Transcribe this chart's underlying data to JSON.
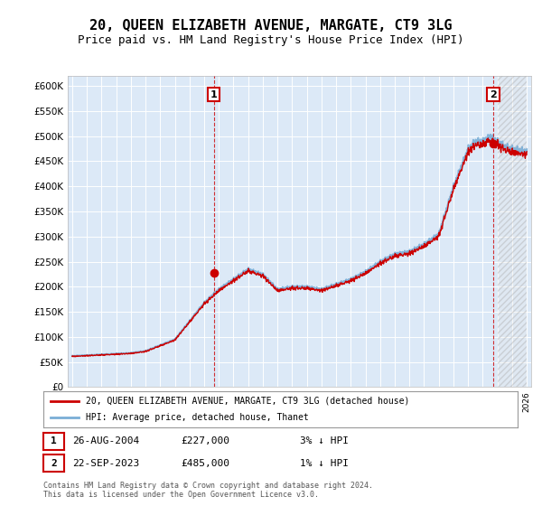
{
  "title": "20, QUEEN ELIZABETH AVENUE, MARGATE, CT9 3LG",
  "subtitle": "Price paid vs. HM Land Registry's House Price Index (HPI)",
  "title_fontsize": 11,
  "subtitle_fontsize": 9,
  "background_color": "#ffffff",
  "plot_background": "#dce9f7",
  "grid_color": "#ffffff",
  "sale1_date_num": 2004.65,
  "sale1_price": 227000,
  "sale1_label": "1",
  "sale2_date_num": 2023.72,
  "sale2_price": 485000,
  "sale2_label": "2",
  "hpi_line_color": "#7aaed6",
  "price_line_color": "#cc0000",
  "ylim_low": 0,
  "ylim_high": 620000,
  "yticks": [
    0,
    50000,
    100000,
    150000,
    200000,
    250000,
    300000,
    350000,
    400000,
    450000,
    500000,
    550000,
    600000
  ],
  "legend_line1": "20, QUEEN ELIZABETH AVENUE, MARGATE, CT9 3LG (detached house)",
  "legend_line2": "HPI: Average price, detached house, Thanet",
  "footnote_line1": "Contains HM Land Registry data © Crown copyright and database right 2024.",
  "footnote_line2": "This data is licensed under the Open Government Licence v3.0.",
  "table_row1_num": "1",
  "table_row1_date": "26-AUG-2004",
  "table_row1_price": "£227,000",
  "table_row1_hpi": "3% ↓ HPI",
  "table_row2_num": "2",
  "table_row2_date": "22-SEP-2023",
  "table_row2_price": "£485,000",
  "table_row2_hpi": "1% ↓ HPI",
  "xlim_low": 1995,
  "xlim_high": 2026
}
